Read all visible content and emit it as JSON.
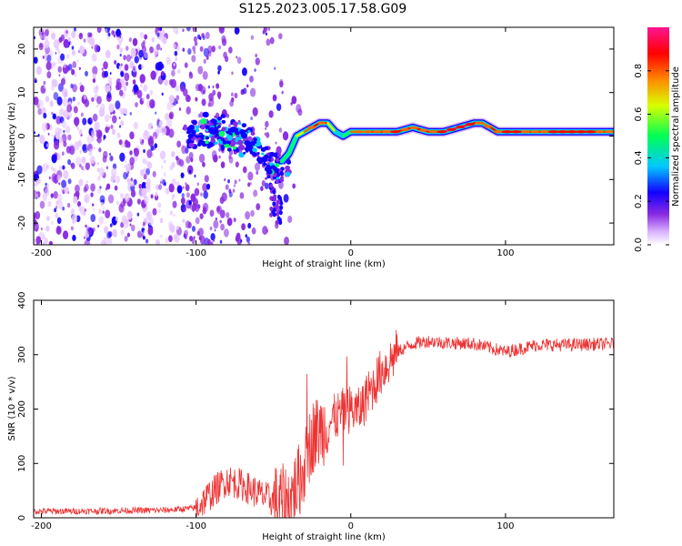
{
  "title": "S125.2023.005.17.58.G09",
  "colors": {
    "snr_line": "#ee3333",
    "axes": "#000000",
    "colormap": [
      "#ffffff",
      "#e7c8ff",
      "#8a2be2",
      "#1400ff",
      "#00c8ff",
      "#00ff66",
      "#e6ff00",
      "#ff6600",
      "#ff0000",
      "#ff1493"
    ]
  },
  "chart_data": [
    {
      "type": "heatmap",
      "name": "spectrogram",
      "xlabel": "Height of straight line (km)",
      "ylabel": "Frequency (Hz)",
      "xlim": [
        -205,
        170
      ],
      "ylim": [
        -25,
        25
      ],
      "xticks": [
        -200,
        -100,
        0,
        100
      ],
      "xtick_labels": [
        "-200",
        "-100",
        "0",
        "100"
      ],
      "yticks": [
        20,
        10,
        0,
        -10,
        -20
      ],
      "ytick_labels": [
        "20",
        "10",
        "0",
        "-10",
        "-20"
      ],
      "colorbar": {
        "label": "Normalized spectral amplitude",
        "range": [
          0.0,
          1.0
        ],
        "ticks": [
          0.0,
          0.2,
          0.4,
          0.6,
          0.8
        ],
        "tick_labels": [
          "0.0",
          "0.2",
          "0.4",
          "0.6",
          "0.8"
        ]
      },
      "ridge": {
        "x": [
          -100,
          -90,
          -80,
          -70,
          -60,
          -55,
          -50,
          -45,
          -40,
          -35,
          -30,
          -25,
          -20,
          -15,
          -10,
          -5,
          0,
          10,
          20,
          30,
          40,
          50,
          60,
          70,
          80,
          85,
          90,
          95,
          100,
          120,
          140,
          170
        ],
        "freq": [
          0,
          1,
          0,
          -1,
          -2,
          -3,
          -5,
          -6,
          -4,
          0,
          1,
          2,
          3,
          3,
          1,
          0,
          1,
          1,
          1,
          1,
          2,
          1,
          1,
          2,
          3,
          3,
          2,
          1,
          1,
          1,
          1,
          1
        ],
        "amplitude": [
          0.35,
          0.4,
          0.35,
          0.3,
          0.35,
          0.4,
          0.45,
          0.5,
          0.5,
          0.6,
          0.7,
          0.85,
          0.9,
          0.85,
          0.5,
          0.4,
          0.75,
          0.85,
          0.9,
          0.95,
          0.85,
          0.9,
          0.95,
          0.95,
          0.95,
          0.85,
          0.8,
          0.9,
          0.95,
          0.9,
          0.95,
          0.9
        ]
      }
    },
    {
      "type": "line",
      "name": "snr",
      "xlabel": "Height of straight line (km)",
      "ylabel": "SNR (10 * v/v)",
      "xlim": [
        -205,
        170
      ],
      "ylim": [
        0,
        400
      ],
      "xticks": [
        -200,
        -100,
        0,
        100
      ],
      "xtick_labels": [
        "-200",
        "-100",
        "0",
        "100"
      ],
      "yticks": [
        0,
        100,
        200,
        300,
        400
      ],
      "ytick_labels": [
        "0",
        "100",
        "200",
        "300",
        "400"
      ],
      "x": [
        -205,
        -180,
        -150,
        -120,
        -100,
        -90,
        -80,
        -70,
        -60,
        -50,
        -40,
        -30,
        -25,
        -20,
        -15,
        -10,
        -5,
        0,
        5,
        10,
        20,
        30,
        40,
        50,
        60,
        80,
        100,
        120,
        140,
        170
      ],
      "y": [
        12,
        12,
        13,
        14,
        18,
        45,
        70,
        60,
        45,
        30,
        30,
        90,
        150,
        160,
        170,
        185,
        195,
        200,
        195,
        220,
        270,
        305,
        320,
        325,
        322,
        320,
        305,
        318,
        318,
        320
      ]
    }
  ]
}
